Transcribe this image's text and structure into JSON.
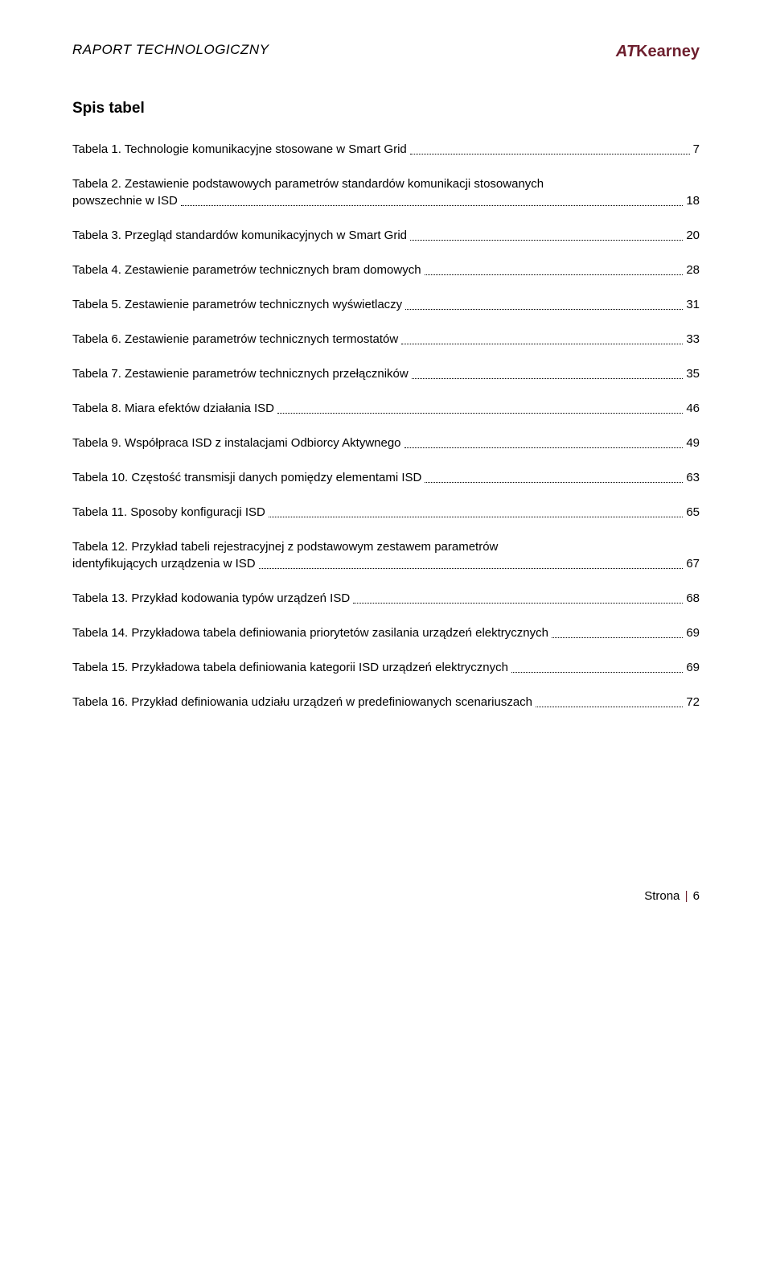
{
  "header": {
    "doc_title": "RAPORT TECHNOLOGICZNY",
    "logo_at": "AT",
    "logo_kearney": "Kearney"
  },
  "section_title": "Spis tabel",
  "toc": [
    {
      "label": "Tabela 1. Technologie komunikacyjne stosowane w Smart Grid",
      "page": "7"
    },
    {
      "label_line1": "Tabela 2. Zestawienie podstawowych parametrów standardów komunikacji stosowanych",
      "label_line2": "powszechnie w ISD",
      "page": "18"
    },
    {
      "label": "Tabela 3. Przegląd standardów komunikacyjnych w Smart Grid",
      "page": "20"
    },
    {
      "label": "Tabela 4. Zestawienie parametrów technicznych bram domowych",
      "page": "28"
    },
    {
      "label": "Tabela 5. Zestawienie parametrów technicznych wyświetlaczy",
      "page": "31"
    },
    {
      "label": "Tabela 6. Zestawienie parametrów technicznych termostatów",
      "page": "33"
    },
    {
      "label": "Tabela 7. Zestawienie parametrów technicznych przełączników",
      "page": "35"
    },
    {
      "label": "Tabela 8. Miara efektów działania ISD",
      "page": "46"
    },
    {
      "label": "Tabela 9. Współpraca ISD z instalacjami Odbiorcy Aktywnego",
      "page": "49"
    },
    {
      "label": "Tabela 10. Częstość transmisji danych pomiędzy elementami ISD",
      "page": "63"
    },
    {
      "label": "Tabela 11. Sposoby konfiguracji ISD",
      "page": "65"
    },
    {
      "label_line1": "Tabela 12. Przykład tabeli rejestracyjnej z podstawowym zestawem parametrów",
      "label_line2": "identyfikujących urządzenia w ISD",
      "page": "67"
    },
    {
      "label": "Tabela 13. Przykład kodowania typów urządzeń ISD",
      "page": "68"
    },
    {
      "label": "Tabela 14. Przykładowa tabela definiowania priorytetów zasilania urządzeń elektrycznych",
      "page": "69"
    },
    {
      "label": "Tabela 15. Przykładowa tabela definiowania kategorii ISD urządzeń elektrycznych",
      "page": "69"
    },
    {
      "label": "Tabela 16. Przykład definiowania udziału urządzeń w predefiniowanych scenariuszach",
      "page": "72"
    }
  ],
  "footer": {
    "label": "Strona",
    "num": "6"
  }
}
